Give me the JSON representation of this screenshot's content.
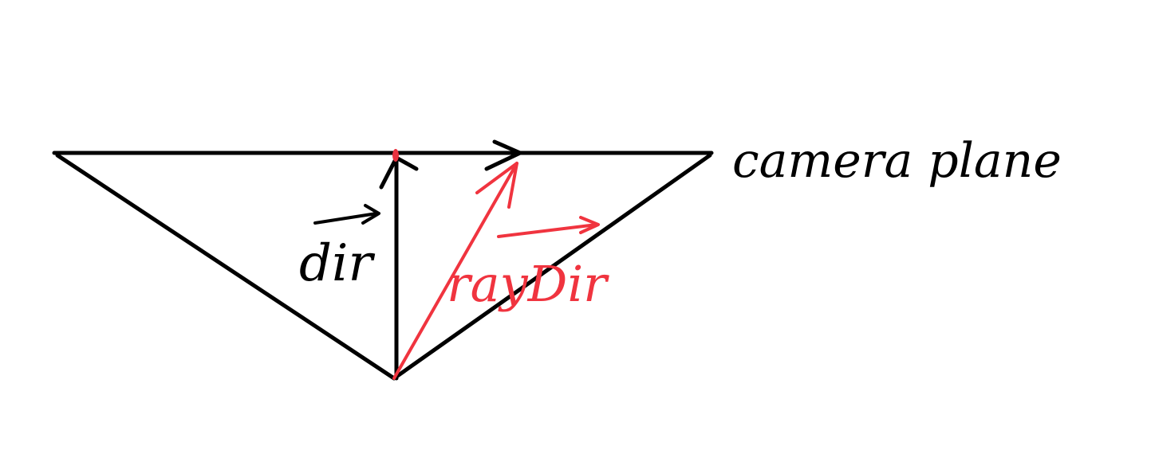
{
  "labels": {
    "dir": "dir",
    "ray_dir": "rayDir",
    "camera_plane": "camera plane"
  }
}
